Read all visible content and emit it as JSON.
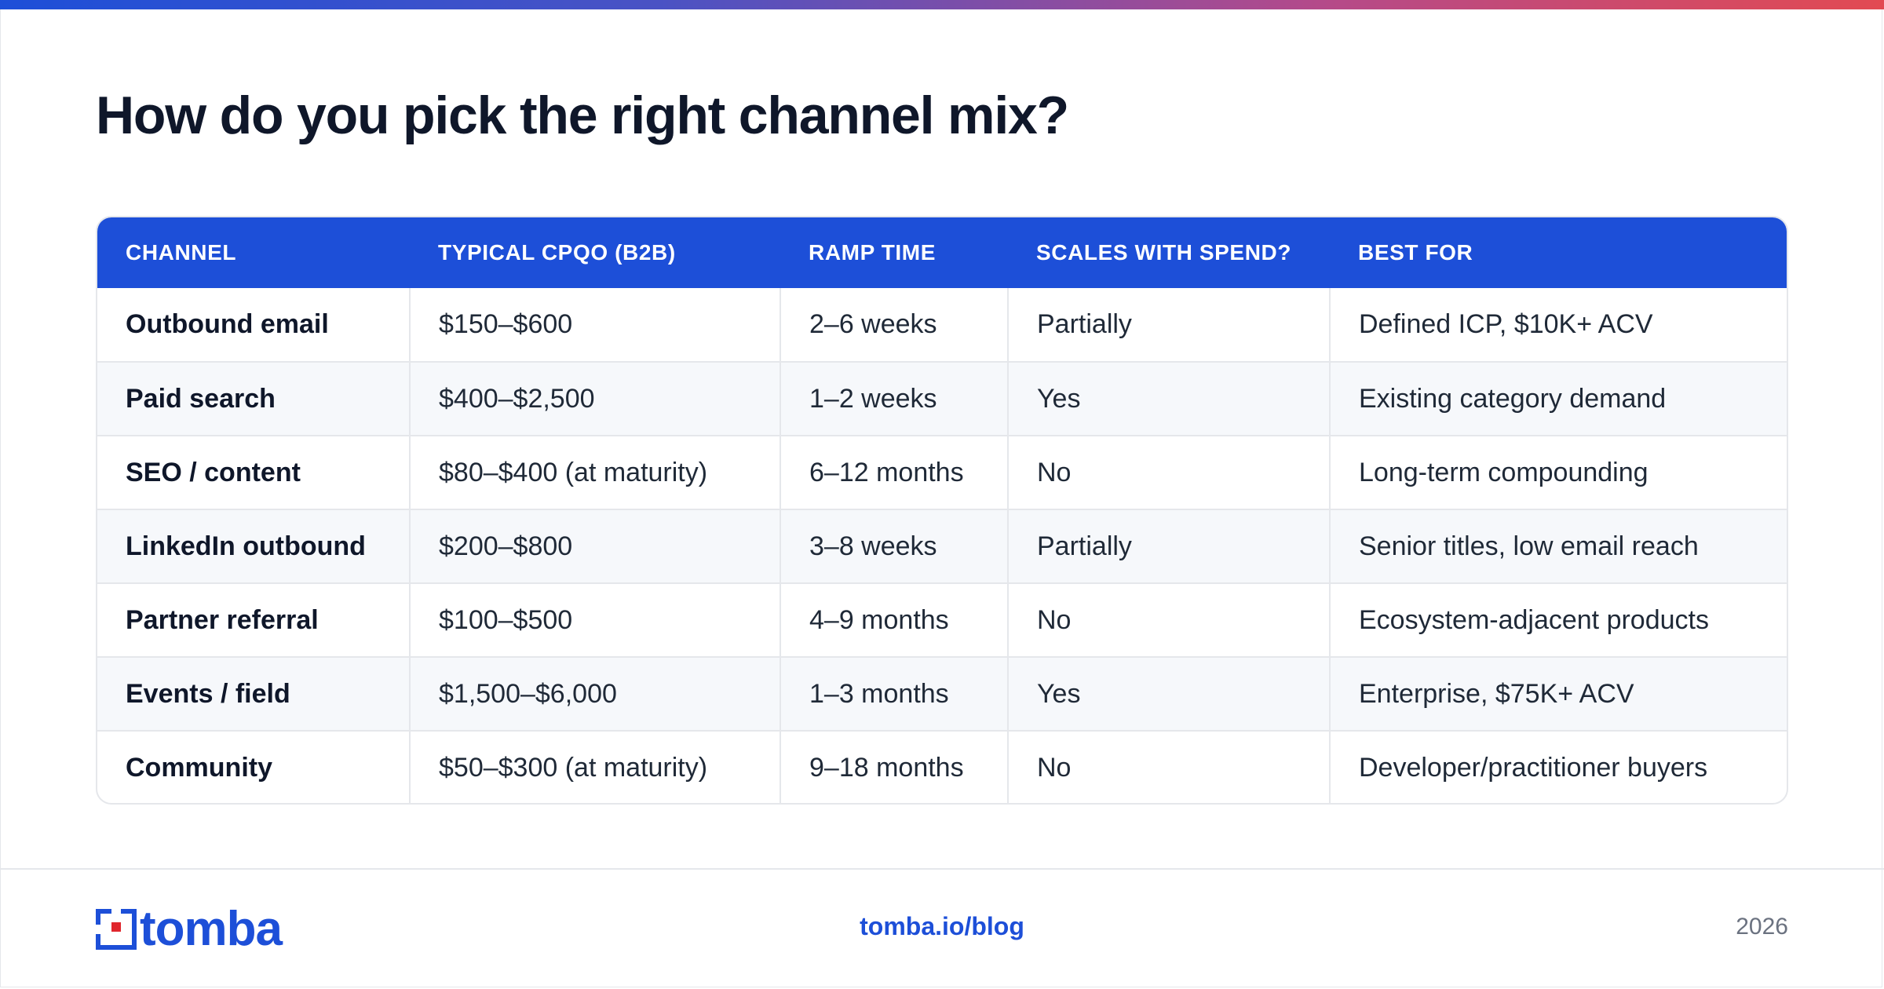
{
  "title": "How do you pick the right channel mix?",
  "colors": {
    "accent": "#1d4fd8",
    "text": "#0f172a",
    "muted": "#6b7280",
    "logo_red": "#e0262d"
  },
  "table": {
    "headers": [
      "CHANNEL",
      "TYPICAL CPQO (B2B)",
      "RAMP TIME",
      "SCALES WITH SPEND?",
      "BEST FOR"
    ],
    "rows": [
      [
        "Outbound email",
        "$150–$600",
        "2–6 weeks",
        "Partially",
        "Defined ICP, $10K+ ACV"
      ],
      [
        "Paid search",
        "$400–$2,500",
        "1–2 weeks",
        "Yes",
        "Existing category demand"
      ],
      [
        "SEO / content",
        "$80–$400 (at maturity)",
        "6–12 months",
        "No",
        "Long-term compounding"
      ],
      [
        "LinkedIn outbound",
        "$200–$800",
        "3–8 weeks",
        "Partially",
        "Senior titles, low email reach"
      ],
      [
        "Partner referral",
        "$100–$500",
        "4–9 months",
        "No",
        "Ecosystem-adjacent products"
      ],
      [
        "Events / field",
        "$1,500–$6,000",
        "1–3 months",
        "Yes",
        "Enterprise, $75K+ ACV"
      ],
      [
        "Community",
        "$50–$300 (at maturity)",
        "9–18 months",
        "No",
        "Developer/practitioner buyers"
      ]
    ]
  },
  "footer": {
    "logo_text": "tomba",
    "link": "tomba.io/blog",
    "year": "2026"
  }
}
